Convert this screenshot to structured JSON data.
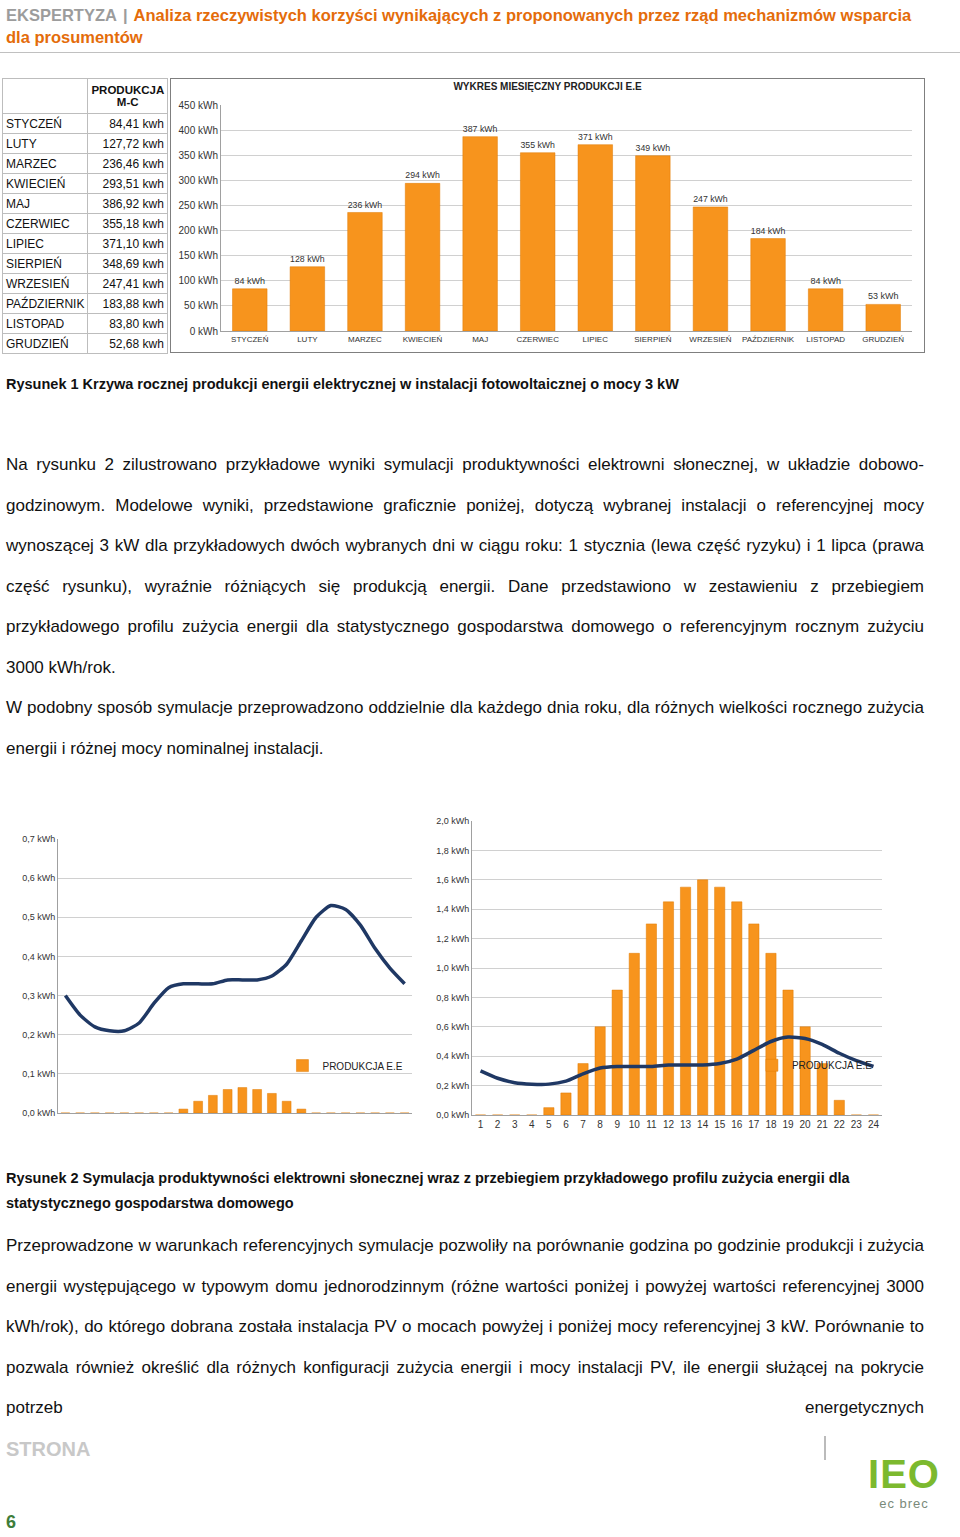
{
  "header": {
    "label": "EKSPERTYZA",
    "separator": "|",
    "title": "Analiza rzeczywistych korzyści wynikających z proponowanych przez rząd mechanizmów wsparcia dla prosumentów"
  },
  "table": {
    "header": [
      "",
      "PRODUKCJA M-C"
    ],
    "rows": [
      [
        "STYCZEŃ",
        "84,41 kwh"
      ],
      [
        "LUTY",
        "127,72 kwh"
      ],
      [
        "MARZEC",
        "236,46 kwh"
      ],
      [
        "KWIECIEŃ",
        "293,51 kwh"
      ],
      [
        "MAJ",
        "386,92 kwh"
      ],
      [
        "CZERWIEC",
        "355,18 kwh"
      ],
      [
        "LIPIEC",
        "371,10 kwh"
      ],
      [
        "SIERPIEŃ",
        "348,69 kwh"
      ],
      [
        "WRZESIEŃ",
        "247,41 kwh"
      ],
      [
        "PAŹDZIERNIK",
        "183,88 kwh"
      ],
      [
        "LISTOPAD",
        "83,80 kwh"
      ],
      [
        "GRUDZIEŃ",
        "52,68 kwh"
      ]
    ]
  },
  "chart_data": [
    {
      "type": "bar",
      "title": "WYKRES MIESIĘCZNY PRODUKCJI E.E",
      "categories": [
        "STYCZEŃ",
        "LUTY",
        "MARZEC",
        "KWIECIEŃ",
        "MAJ",
        "CZERWIEC",
        "LIPIEC",
        "SIERPIEŃ",
        "WRZESIEŃ",
        "PAŹDZIERNIK",
        "LISTOPAD",
        "GRUDZIEŃ"
      ],
      "values": [
        84,
        128,
        236,
        294,
        387,
        355,
        371,
        349,
        247,
        184,
        84,
        53
      ],
      "value_labels": [
        "84 kWh",
        "128 kWh",
        "236 kWh",
        "294 kWh",
        "387 kWh",
        "355 kWh",
        "371 kWh",
        "349 kWh",
        "247 kWh",
        "184 kWh",
        "84 kWh",
        "53 kWh"
      ],
      "data_labels": true,
      "color": "#f7941d",
      "grid": true,
      "ylim": [
        0,
        450
      ],
      "yticks": [
        {
          "value": 0,
          "label": "0 kWh"
        },
        {
          "value": 50,
          "label": "50 kWh"
        },
        {
          "value": 100,
          "label": "100 kWh"
        },
        {
          "value": 150,
          "label": "150 kWh"
        },
        {
          "value": 200,
          "label": "200 kWh"
        },
        {
          "value": 250,
          "label": "250 kWh"
        },
        {
          "value": 300,
          "label": "300 kWh"
        },
        {
          "value": 350,
          "label": "350 kWh"
        },
        {
          "value": 400,
          "label": "400 kWh"
        },
        {
          "value": 450,
          "label": "450 kWh"
        }
      ]
    },
    {
      "type": "bar",
      "x": [
        1,
        2,
        3,
        4,
        5,
        6,
        7,
        8,
        9,
        10,
        11,
        12,
        13,
        14,
        15,
        16,
        17,
        18,
        19,
        20,
        21,
        22,
        23,
        24
      ],
      "series": [
        {
          "name": "PRODUKCJA E.E",
          "type": "bar",
          "color": "#f7941d",
          "values": [
            0,
            0,
            0,
            0,
            0,
            0,
            0,
            0,
            0.01,
            0.03,
            0.045,
            0.06,
            0.065,
            0.06,
            0.05,
            0.03,
            0.01,
            0,
            0,
            0,
            0,
            0,
            0,
            0
          ]
        },
        {
          "type": "line",
          "color": "#1f3864",
          "values": [
            0.3,
            0.25,
            0.22,
            0.21,
            0.21,
            0.23,
            0.28,
            0.32,
            0.33,
            0.33,
            0.33,
            0.34,
            0.34,
            0.34,
            0.35,
            0.38,
            0.44,
            0.5,
            0.53,
            0.52,
            0.48,
            0.42,
            0.37,
            0.33
          ]
        }
      ],
      "legend": "lower right",
      "grid": true,
      "tick_labels": "y",
      "xlim": [
        0.5,
        24.5
      ],
      "xticks": [
        1,
        2,
        3,
        4,
        5,
        6,
        7,
        8,
        9,
        10,
        11,
        12,
        13,
        14,
        15,
        16,
        17,
        18,
        19,
        20,
        21,
        22,
        23,
        24
      ],
      "ylim": [
        0,
        0.7
      ],
      "yticks": [
        {
          "value": 0,
          "label": "0,0 kWh"
        },
        {
          "value": 0.1,
          "label": "0,1 kWh"
        },
        {
          "value": 0.2,
          "label": "0,2 kWh"
        },
        {
          "value": 0.3,
          "label": "0,3 kWh"
        },
        {
          "value": 0.4,
          "label": "0,4 kWh"
        },
        {
          "value": 0.5,
          "label": "0,5 kWh"
        },
        {
          "value": 0.6,
          "label": "0,6 kWh"
        },
        {
          "value": 0.7,
          "label": "0,7 kWh"
        }
      ]
    },
    {
      "type": "bar",
      "x": [
        1,
        2,
        3,
        4,
        5,
        6,
        7,
        8,
        9,
        10,
        11,
        12,
        13,
        14,
        15,
        16,
        17,
        18,
        19,
        20,
        21,
        22,
        23,
        24
      ],
      "series": [
        {
          "name": "PRODUKCJA E.E",
          "type": "bar",
          "color": "#f7941d",
          "values": [
            0,
            0,
            0,
            0,
            0.05,
            0.15,
            0.35,
            0.6,
            0.85,
            1.1,
            1.3,
            1.45,
            1.55,
            1.6,
            1.55,
            1.45,
            1.3,
            1.1,
            0.85,
            0.6,
            0.35,
            0.1,
            0,
            0
          ]
        },
        {
          "type": "line",
          "color": "#1f3864",
          "values": [
            0.3,
            0.25,
            0.22,
            0.21,
            0.21,
            0.23,
            0.28,
            0.32,
            0.33,
            0.33,
            0.33,
            0.34,
            0.34,
            0.34,
            0.35,
            0.38,
            0.44,
            0.5,
            0.53,
            0.52,
            0.48,
            0.42,
            0.37,
            0.33
          ]
        }
      ],
      "legend": "lower right",
      "grid": true,
      "xlim": [
        0.5,
        24.5
      ],
      "xticks": [
        1,
        2,
        3,
        4,
        5,
        6,
        7,
        8,
        9,
        10,
        11,
        12,
        13,
        14,
        15,
        16,
        17,
        18,
        19,
        20,
        21,
        22,
        23,
        24
      ],
      "ylim": [
        0,
        2.0
      ],
      "yticks": [
        {
          "value": 0,
          "label": "0,0 kWh"
        },
        {
          "value": 0.2,
          "label": "0,2 kWh"
        },
        {
          "value": 0.4,
          "label": "0,4 kWh"
        },
        {
          "value": 0.6,
          "label": "0,6 kWh"
        },
        {
          "value": 0.8,
          "label": "0,8 kWh"
        },
        {
          "value": 1.0,
          "label": "1,0 kWh"
        },
        {
          "value": 1.2,
          "label": "1,2 kWh"
        },
        {
          "value": 1.4,
          "label": "1,4 kWh"
        },
        {
          "value": 1.6,
          "label": "1,6 kWh"
        },
        {
          "value": 1.8,
          "label": "1,8 kWh"
        },
        {
          "value": 2.0,
          "label": "2,0 kWh"
        }
      ]
    }
  ],
  "captions": [
    "Rysunek 1 Krzywa rocznej produkcji energii elektrycznej w instalacji fotowoltaicznej o mocy 3 kW",
    "Rysunek 2 Symulacja produktywności elektrowni słonecznej wraz z przebiegiem przykładowego profilu zużycia energii dla statystycznego gospodarstwa domowego"
  ],
  "text_1": [
    "Na rysunku 2 zilustrowano przykładowe wyniki symulacji produktywności elektrowni słonecznej, w układzie dobowo-godzinowym. Modelowe wyniki, przedstawione graficznie poniżej, dotyczą wybranej instalacji o referencyjnej mocy wynoszącej 3 kW dla przykładowych dwóch wybranych dni w ciągu roku: 1 stycznia (lewa część ryzyku) i 1 lipca (prawa część rysunku), wyraźnie różniących się produkcją energii. Dane przedstawiono w zestawieniu z przebiegiem przykładowego profilu zużycia energii dla statystycznego gospodarstwa domowego o referencyjnym rocznym zużyciu 3000 kWh/rok.",
    "W podobny sposób symulacje przeprowadzono oddzielnie dla każdego dnia roku, dla różnych wielkości rocznego zużycia energii i różnej mocy nominalnej instalacji."
  ],
  "text_2": [
    "Przeprowadzone w warunkach referencyjnych symulacje pozwoliły na porównanie godzina po godzinie produkcji i zużycia energii występującego w typowym domu jednorodzinnym (różne wartości poniżej i powyżej wartości referencyjnej 3000 kWh/rok), do którego dobrana została instalacja PV o mocach powyżej i poniżej mocy referencyjnej 3 kW. Porównanie to pozwala również określić dla różnych konfiguracji zużycia energii i mocy instalacji PV, ile energii służącej na pokrycie potrzeb energetycznych"
  ],
  "footer": {
    "page_label": "STRONA",
    "page": "6",
    "logo": "IEO",
    "logo_sub": "ec brec"
  }
}
